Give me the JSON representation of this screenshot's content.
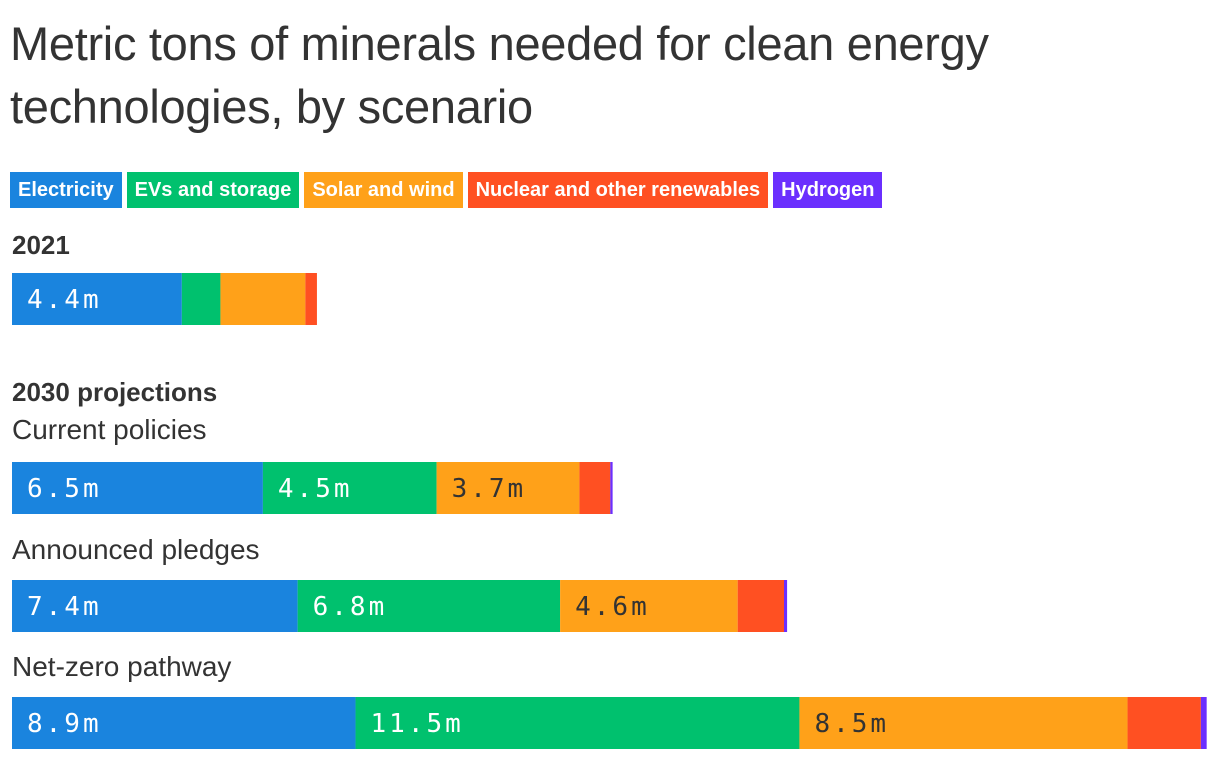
{
  "title": "Metric tons of minerals needed for clean energy technologies, by scenario",
  "legend": [
    {
      "name": "Electricity",
      "color": "#1a84de"
    },
    {
      "name": "EVs and storage",
      "color": "#00c16e"
    },
    {
      "name": "Solar and wind",
      "color": "#ffa119"
    },
    {
      "name": "Nuclear and other renewables",
      "color": "#ff5022"
    },
    {
      "name": "Hydrogen",
      "color": "#6b2ffe"
    }
  ],
  "sections": {
    "s2021": "2021",
    "s2030": "2030 projections"
  },
  "row_labels": {
    "current": "Current policies",
    "announced": "Announced pledges",
    "netzero": "Net-zero pathway"
  },
  "chart_data": {
    "type": "bar",
    "orientation": "horizontal",
    "stacked": true,
    "unit": "metric tons",
    "categories": [
      "2021",
      "Current policies",
      "Announced pledges",
      "Net-zero pathway"
    ],
    "series": [
      {
        "name": "Electricity",
        "color": "#1a84de",
        "values": [
          4.4,
          6.5,
          7.4,
          8.9
        ],
        "labels": [
          "4.4m",
          "6.5m",
          "7.4m",
          "8.9m"
        ]
      },
      {
        "name": "EVs and storage",
        "color": "#00c16e",
        "values": [
          1.0,
          4.5,
          6.8,
          11.5
        ],
        "labels": [
          "",
          "4.5m",
          "6.8m",
          "11.5m"
        ]
      },
      {
        "name": "Solar and wind",
        "color": "#ffa119",
        "values": [
          2.2,
          3.7,
          4.6,
          8.5
        ],
        "labels": [
          "",
          "3.7m",
          "4.6m",
          "8.5m"
        ]
      },
      {
        "name": "Nuclear and other renewables",
        "color": "#ff5022",
        "values": [
          0.3,
          0.8,
          1.2,
          1.9
        ],
        "labels": [
          "",
          "",
          "",
          ""
        ]
      },
      {
        "name": "Hydrogen",
        "color": "#6b2ffe",
        "values": [
          0.0,
          0.06,
          0.08,
          0.15
        ],
        "labels": [
          "",
          "",
          "",
          ""
        ]
      }
    ]
  }
}
